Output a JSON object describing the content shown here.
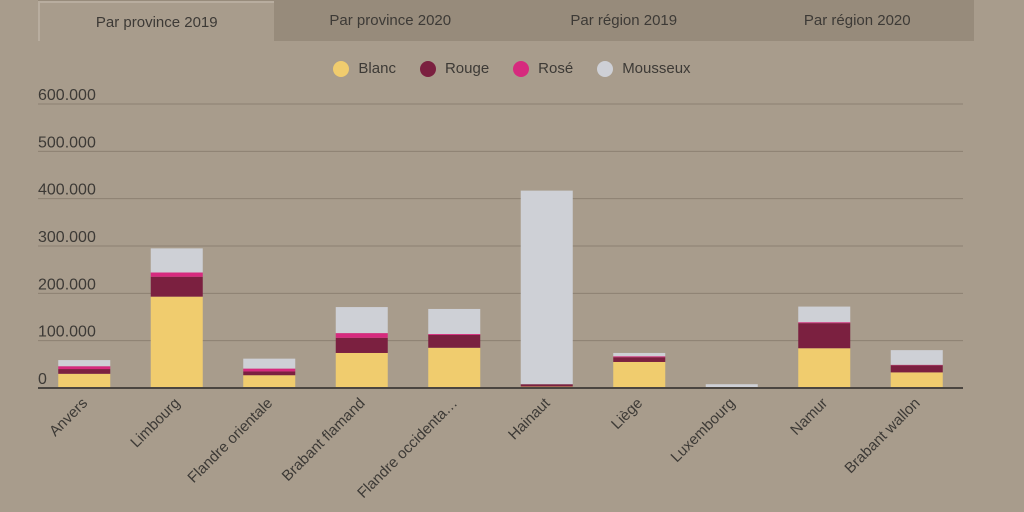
{
  "tabs": [
    {
      "label": "Par province 2019",
      "active": true
    },
    {
      "label": "Par province 2020",
      "active": false
    },
    {
      "label": "Par région 2019",
      "active": false
    },
    {
      "label": "Par région 2020",
      "active": false
    }
  ],
  "colors": {
    "background": "#a89c8c",
    "gridline": "#8c8172",
    "axis": "#4a4540"
  },
  "chart_data": {
    "type": "bar",
    "stacked": true,
    "categories": [
      "Anvers",
      "Limbourg",
      "Flandre orientale",
      "Brabant flamand",
      "Flandre occidenta…",
      "Hainaut",
      "Liège",
      "Luxembourg",
      "Namur",
      "Brabant wallon"
    ],
    "series": [
      {
        "name": "Blanc",
        "color": "#f0cc6e",
        "values": [
          30000,
          193000,
          27000,
          74000,
          85000,
          3000,
          55000,
          0,
          84000,
          33000
        ]
      },
      {
        "name": "Rouge",
        "color": "#7b2040",
        "values": [
          10000,
          42000,
          8000,
          32000,
          27000,
          5000,
          10000,
          0,
          53000,
          15000
        ]
      },
      {
        "name": "Rosé",
        "color": "#d62a7e",
        "values": [
          6000,
          9000,
          6000,
          10000,
          2000,
          0,
          2000,
          0,
          2000,
          1000
        ]
      },
      {
        "name": "Mousseux",
        "color": "#ced0d6",
        "values": [
          13000,
          51000,
          21000,
          55000,
          53000,
          409000,
          7000,
          8000,
          33000,
          31000
        ]
      }
    ],
    "ylim": [
      0,
      600000
    ],
    "yticks": [
      "0",
      "100.000",
      "200.000",
      "300.000",
      "400.000",
      "500.000",
      "600.000"
    ],
    "grid": true,
    "legend_position": "top-center"
  }
}
